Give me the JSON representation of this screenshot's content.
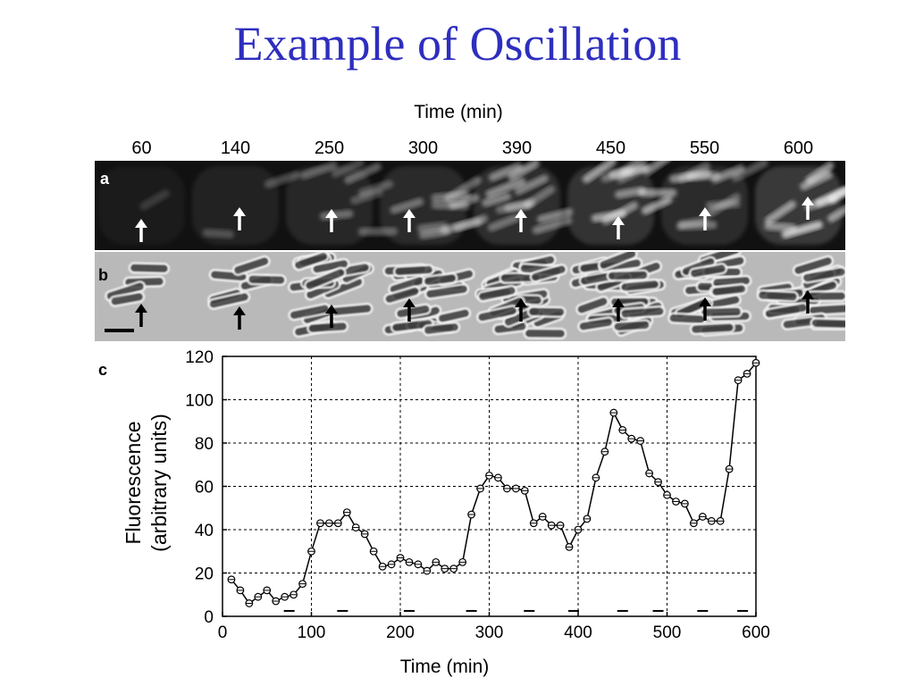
{
  "slide": {
    "title": "Example of Oscillation"
  },
  "panels": {
    "time_header": "Time (min)",
    "times": [
      "60",
      "140",
      "250",
      "300",
      "390",
      "450",
      "550",
      "600"
    ],
    "label_a": "a",
    "label_b": "b",
    "label_c": "c"
  },
  "colors": {
    "title": "#2e2ebf",
    "fluorescence_bg": "#111111",
    "phase_bg": "#b9b9b9",
    "series": "#000000",
    "grid": "#000000"
  },
  "chart_data": {
    "type": "line",
    "title": "",
    "xlabel": "Time (min)",
    "ylabel": "Fluorescence",
    "ylabel2": "(arbitrary units)",
    "xlim": [
      0,
      600
    ],
    "ylim": [
      0,
      120
    ],
    "xticks": [
      0,
      100,
      200,
      300,
      400,
      500,
      600
    ],
    "yticks": [
      0,
      20,
      40,
      60,
      80,
      100,
      120
    ],
    "grid": true,
    "x": [
      10,
      20,
      30,
      40,
      50,
      60,
      70,
      80,
      90,
      100,
      110,
      120,
      130,
      140,
      150,
      160,
      170,
      180,
      190,
      200,
      210,
      220,
      230,
      240,
      250,
      260,
      270,
      280,
      290,
      300,
      310,
      320,
      330,
      340,
      350,
      360,
      370,
      380,
      390,
      400,
      410,
      420,
      430,
      440,
      450,
      460,
      470,
      480,
      490,
      500,
      510,
      520,
      530,
      540,
      550,
      560,
      570,
      580,
      590,
      600
    ],
    "y": [
      17,
      12,
      6,
      9,
      12,
      7,
      9,
      10,
      15,
      30,
      43,
      43,
      43,
      48,
      41,
      38,
      30,
      23,
      24,
      27,
      25,
      24,
      21,
      25,
      22,
      22,
      25,
      47,
      59,
      65,
      64,
      59,
      59,
      58,
      43,
      46,
      42,
      42,
      32,
      40,
      45,
      64,
      76,
      94,
      86,
      82,
      81,
      66,
      62,
      56,
      53,
      52,
      43,
      46,
      44,
      44,
      68,
      109,
      112,
      117
    ],
    "division_marks": [
      75,
      135,
      210,
      280,
      345,
      395,
      450,
      490,
      540,
      585
    ]
  }
}
